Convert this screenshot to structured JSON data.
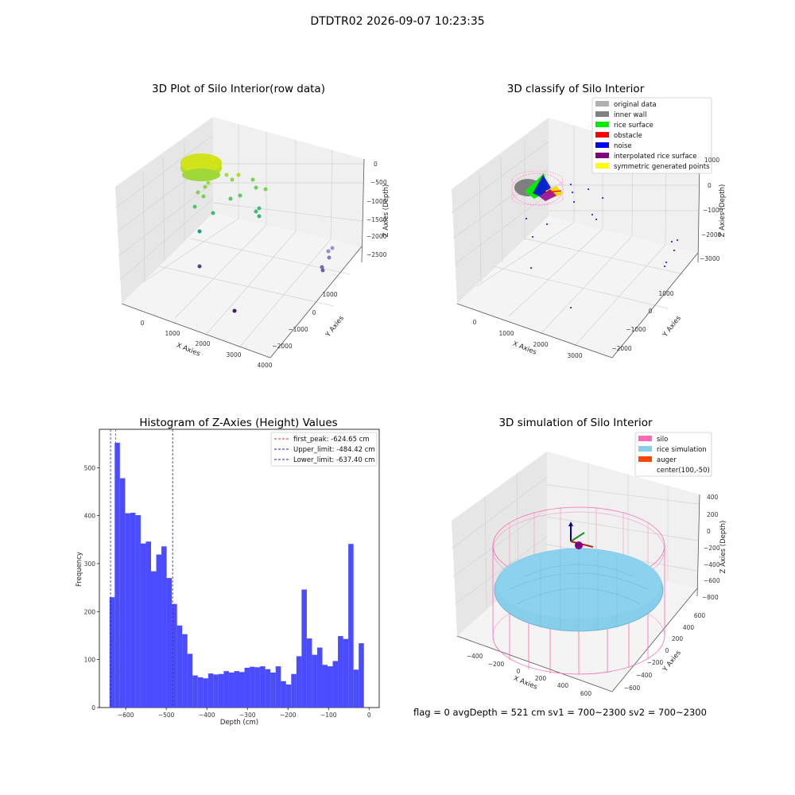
{
  "suptitle": "DTDTR02 2026-09-07 10:23:35",
  "footer": "flag = 0    avgDepth = 521 cm  sv1 = 700~2300  sv2 = 700~2300",
  "panels": {
    "p1": {
      "title": "3D Plot of Silo Interior(row data)",
      "xlabel": "X Axies",
      "ylabel": "Y Axies",
      "zlabel": "Z Axies (Depth)",
      "xticks": [
        "0",
        "1000",
        "2000",
        "3000",
        "4000"
      ],
      "yticks": [
        "1000",
        "0",
        "−1000",
        "−2000"
      ],
      "zticks": [
        "0",
        "−500",
        "−1000",
        "−1500",
        "−2000",
        "−2500"
      ]
    },
    "p2": {
      "title": "3D classify of Silo Interior",
      "xlabel": "X Axies",
      "ylabel": "Y Axies",
      "zlabel": "Z Axies (Depth)",
      "xticks": [
        "0",
        "1000",
        "2000",
        "3000"
      ],
      "yticks": [
        "1000",
        "0",
        "−1000",
        "−2000"
      ],
      "zticks": [
        "1000",
        "0",
        "−1000",
        "−2000",
        "−3000"
      ],
      "legend": [
        {
          "label": "original data",
          "color": "#b0b0b0"
        },
        {
          "label": "inner wall",
          "color": "#808080"
        },
        {
          "label": "rice surface",
          "color": "#00ee00"
        },
        {
          "label": "obstacle",
          "color": "#ff0000"
        },
        {
          "label": "noise",
          "color": "#0000ff"
        },
        {
          "label": "interpolated rice surface",
          "color": "#800080"
        },
        {
          "label": "symmetric generated points",
          "color": "#ffff00"
        }
      ]
    },
    "p4": {
      "title": "3D simulation of Silo Interior",
      "xlabel": "X Axies",
      "ylabel": "Y Axies",
      "zlabel": "Z Axies (Depth)",
      "xticks": [
        "−400",
        "−200",
        "0",
        "200",
        "400",
        "600"
      ],
      "yticks": [
        "600",
        "400",
        "200",
        "0",
        "−200",
        "−400",
        "−600"
      ],
      "zticks": [
        "400",
        "200",
        "0",
        "−200",
        "−400",
        "−600",
        "−800"
      ],
      "legend": [
        {
          "label": "silo",
          "color": "#ff69b4"
        },
        {
          "label": "rice simulation",
          "color": "#87ceeb"
        },
        {
          "label": "auger",
          "color": "#ff4500"
        },
        {
          "label": "center(100,-50)",
          "color": ""
        }
      ]
    }
  },
  "chart_data": {
    "type": "bar",
    "title": "Histogram of Z-Axies (Height) Values",
    "xlabel": "Depth (cm)",
    "ylabel": "Frequency",
    "xlim": [
      -665,
      25
    ],
    "ylim": [
      0,
      580
    ],
    "bin_start": -640,
    "bin_width": 12.8,
    "values": [
      230,
      552,
      478,
      405,
      406,
      401,
      342,
      346,
      284,
      319,
      336,
      270,
      216,
      171,
      153,
      112,
      67,
      63,
      61,
      71,
      69,
      70,
      76,
      73,
      76,
      74,
      83,
      85,
      84,
      86,
      80,
      73,
      86,
      55,
      48,
      70,
      107,
      246,
      144,
      110,
      125,
      89,
      86,
      97,
      149,
      143,
      341,
      79,
      134
    ],
    "xticks": [
      -600,
      -500,
      -400,
      -300,
      -200,
      -100,
      0
    ],
    "xtick_labels": [
      "−600",
      "−500",
      "−400",
      "−300",
      "−200",
      "−100",
      "0"
    ],
    "yticks": [
      0,
      100,
      200,
      300,
      400,
      500
    ],
    "bar_color": "#4b4bff",
    "vlines": [
      {
        "label": "first_peak: -624.65 cm",
        "x": -624.65,
        "color": "#e03030"
      },
      {
        "label": "Upper_limit: -484.42 cm",
        "x": -484.42,
        "color": "#2020d0"
      },
      {
        "label": "Lower_limit: -637.40 cm",
        "x": -637.4,
        "color": "#2020d0"
      }
    ],
    "legend_position": "upper right"
  }
}
